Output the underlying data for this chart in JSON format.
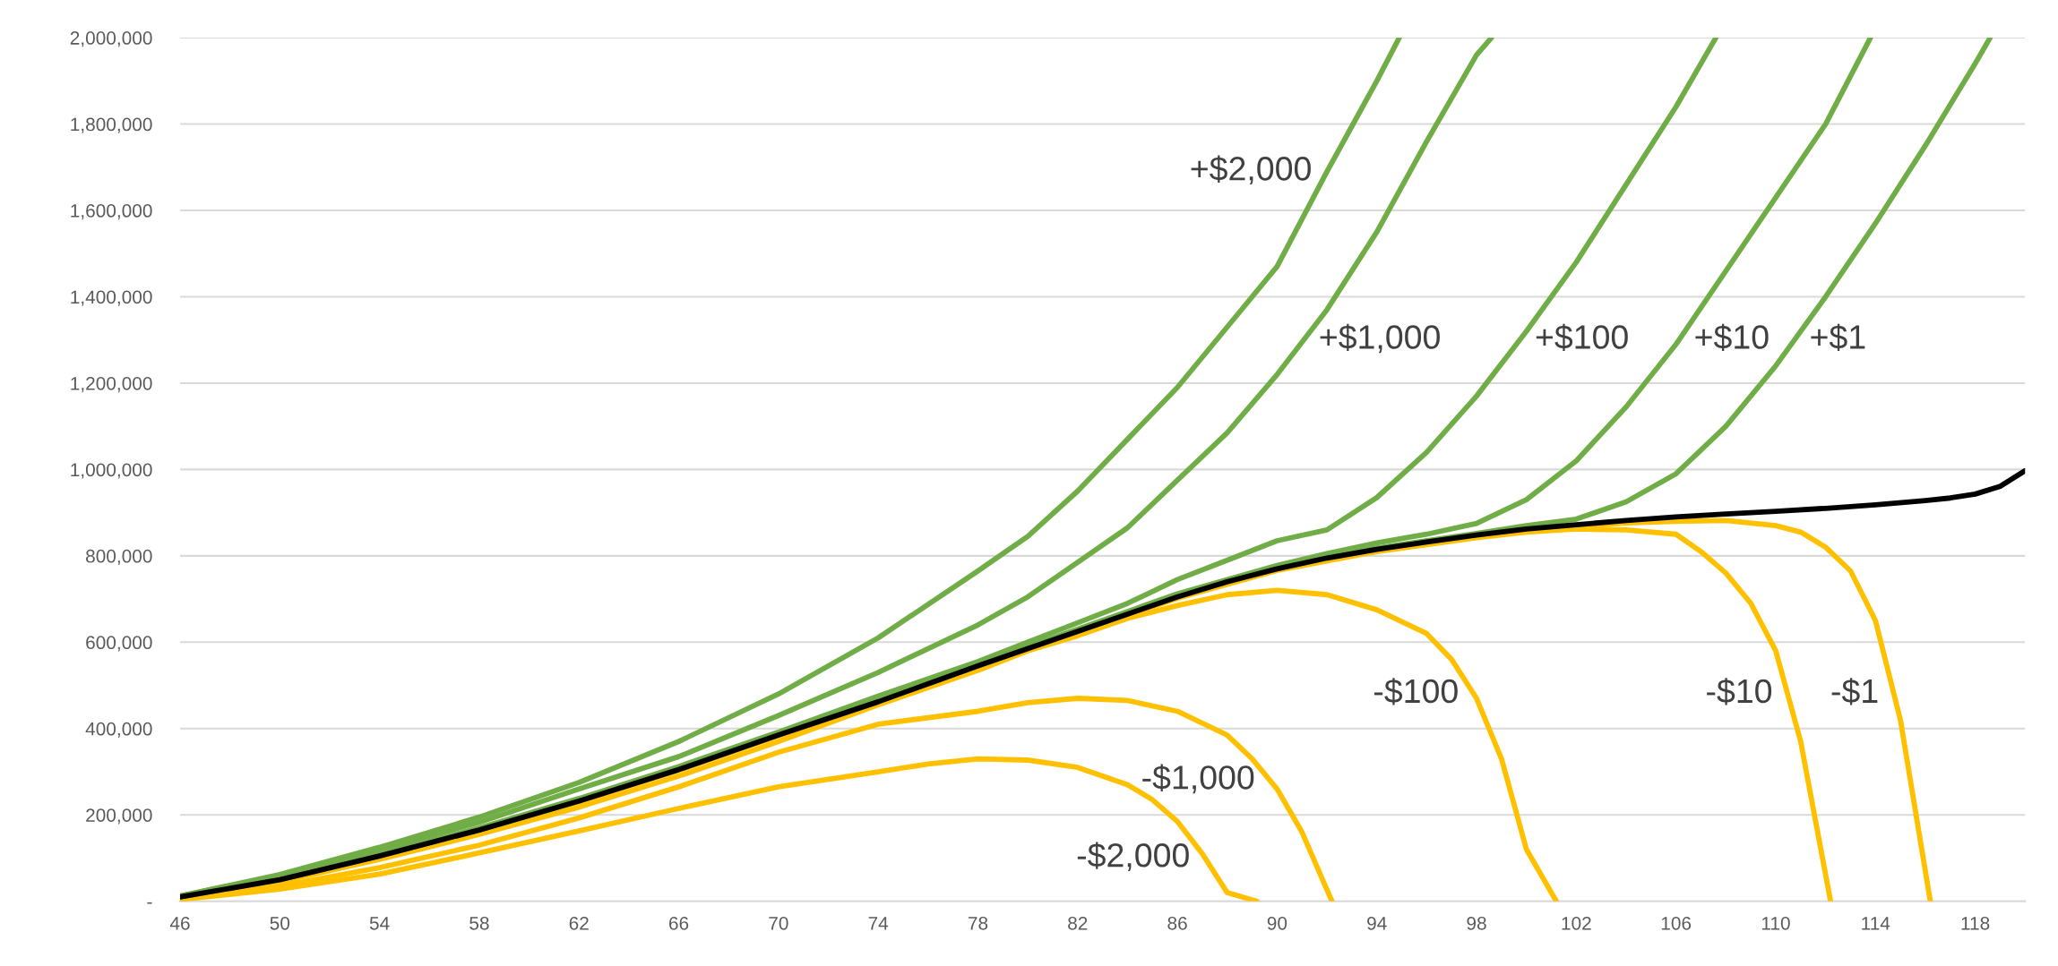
{
  "chart_data": {
    "type": "line",
    "xlim": [
      46,
      120
    ],
    "xticks": [
      46,
      50,
      54,
      58,
      62,
      66,
      70,
      74,
      78,
      82,
      86,
      90,
      94,
      98,
      102,
      106,
      110,
      114,
      118
    ],
    "ylim": [
      0,
      2000000
    ],
    "yticks": [
      {
        "value": 0,
        "label": "-"
      },
      {
        "value": 200000,
        "label": "200,000"
      },
      {
        "value": 400000,
        "label": "400,000"
      },
      {
        "value": 600000,
        "label": "600,000"
      },
      {
        "value": 800000,
        "label": "800,000"
      },
      {
        "value": 1000000,
        "label": "1,000,000"
      },
      {
        "value": 1200000,
        "label": "1,200,000"
      },
      {
        "value": 1400000,
        "label": "1,400,000"
      },
      {
        "value": 1600000,
        "label": "1,600,000"
      },
      {
        "value": 1800000,
        "label": "1,800,000"
      },
      {
        "value": 2000000,
        "label": "2,000,000"
      }
    ],
    "grid": "y",
    "marker": "none",
    "line_style": "solid",
    "series": [
      {
        "name": "-$2,000",
        "color": "#ffc000",
        "x": [
          46,
          50,
          54,
          58,
          62,
          66,
          70,
          74,
          76,
          78,
          80,
          82,
          84,
          85,
          86,
          87,
          88,
          89.2
        ],
        "values": [
          4000,
          28000,
          63000,
          112000,
          163000,
          215000,
          265000,
          300000,
          318000,
          330000,
          327000,
          310000,
          270000,
          235000,
          185000,
          110000,
          20000,
          0
        ]
      },
      {
        "name": "-$1,000",
        "color": "#ffc000",
        "x": [
          46,
          50,
          54,
          58,
          62,
          66,
          70,
          74,
          78,
          80,
          82,
          84,
          86,
          88,
          89,
          90,
          91,
          92.2
        ],
        "values": [
          5000,
          35000,
          78000,
          130000,
          193000,
          265000,
          345000,
          410000,
          440000,
          460000,
          470000,
          465000,
          440000,
          385000,
          330000,
          260000,
          160000,
          0
        ]
      },
      {
        "name": "-$100",
        "color": "#ffc000",
        "x": [
          46,
          50,
          54,
          58,
          62,
          66,
          70,
          74,
          78,
          80,
          82,
          84,
          86,
          88,
          90,
          92,
          94,
          96,
          97,
          98,
          99,
          100,
          101.2
        ],
        "values": [
          9000,
          45000,
          97000,
          155000,
          218000,
          290000,
          370000,
          455000,
          535000,
          580000,
          615000,
          655000,
          685000,
          710000,
          720000,
          710000,
          675000,
          620000,
          560000,
          470000,
          330000,
          120000,
          0
        ]
      },
      {
        "name": "-$10",
        "color": "#ffc000",
        "x": [
          46,
          50,
          54,
          58,
          62,
          66,
          70,
          74,
          78,
          82,
          86,
          90,
          94,
          98,
          100,
          102,
          104,
          106,
          107,
          108,
          109,
          110,
          111,
          112.2
        ],
        "values": [
          10000,
          49000,
          103000,
          163000,
          230000,
          303000,
          383000,
          460000,
          543000,
          623000,
          702000,
          766000,
          810000,
          842000,
          855000,
          862000,
          860000,
          850000,
          810000,
          760000,
          690000,
          580000,
          370000,
          0
        ]
      },
      {
        "name": "-$1",
        "color": "#ffc000",
        "x": [
          46,
          50,
          54,
          58,
          62,
          66,
          70,
          74,
          78,
          82,
          86,
          90,
          94,
          98,
          102,
          104,
          106,
          108,
          110,
          111,
          112,
          113,
          114,
          115,
          116.2
        ],
        "values": [
          10000,
          50000,
          104000,
          164000,
          231000,
          304000,
          384000,
          461000,
          544000,
          624000,
          704000,
          769000,
          813000,
          846000,
          868000,
          876000,
          880000,
          882000,
          870000,
          855000,
          820000,
          765000,
          650000,
          420000,
          0
        ]
      },
      {
        "name": "+$1",
        "color": "#70ad47",
        "x": [
          46,
          50,
          54,
          58,
          62,
          66,
          70,
          74,
          78,
          82,
          86,
          90,
          94,
          98,
          100,
          102,
          104,
          106,
          108,
          110,
          112,
          114,
          116,
          118,
          118.6
        ],
        "values": [
          10000,
          51000,
          106000,
          166000,
          233000,
          306000,
          386000,
          464000,
          547000,
          627000,
          707000,
          772000,
          818000,
          852000,
          870000,
          885000,
          925000,
          990000,
          1100000,
          1240000,
          1400000,
          1570000,
          1750000,
          1940000,
          2000000
        ]
      },
      {
        "name": "+$10",
        "color": "#70ad47",
        "x": [
          46,
          50,
          54,
          58,
          62,
          66,
          70,
          74,
          78,
          82,
          86,
          90,
          92,
          94,
          96,
          98,
          100,
          102,
          104,
          106,
          108,
          110,
          112,
          113.8
        ],
        "values": [
          11000,
          51000,
          106000,
          167000,
          234000,
          307000,
          387000,
          466000,
          549000,
          630000,
          712000,
          778000,
          805000,
          830000,
          850000,
          875000,
          930000,
          1020000,
          1145000,
          1290000,
          1460000,
          1630000,
          1800000,
          2000000
        ]
      },
      {
        "name": "+$100",
        "color": "#70ad47",
        "x": [
          46,
          50,
          54,
          58,
          62,
          66,
          70,
          74,
          78,
          80,
          82,
          84,
          86,
          88,
          90,
          92,
          94,
          96,
          98,
          100,
          102,
          104,
          106,
          107.6
        ],
        "values": [
          11000,
          52000,
          108000,
          170000,
          238000,
          312000,
          392000,
          475000,
          555000,
          600000,
          645000,
          690000,
          745000,
          790000,
          835000,
          860000,
          935000,
          1040000,
          1170000,
          1320000,
          1480000,
          1660000,
          1840000,
          2000000
        ]
      },
      {
        "name": "+$1,000",
        "color": "#70ad47",
        "x": [
          46,
          50,
          54,
          58,
          62,
          66,
          70,
          74,
          78,
          80,
          82,
          84,
          86,
          88,
          90,
          92,
          94,
          96,
          98,
          98.6
        ],
        "values": [
          12000,
          60000,
          118000,
          183000,
          260000,
          335000,
          430000,
          530000,
          640000,
          705000,
          785000,
          865000,
          975000,
          1085000,
          1220000,
          1370000,
          1550000,
          1760000,
          1960000,
          2000000
        ]
      },
      {
        "name": "+$2,000",
        "color": "#70ad47",
        "x": [
          46,
          50,
          54,
          58,
          62,
          66,
          70,
          74,
          78,
          80,
          82,
          84,
          86,
          88,
          90,
          92,
          94,
          94.9
        ],
        "values": [
          12000,
          62000,
          125000,
          195000,
          275000,
          370000,
          480000,
          610000,
          765000,
          845000,
          950000,
          1070000,
          1190000,
          1330000,
          1470000,
          1690000,
          1900000,
          2000000
        ]
      },
      {
        "color": "#000000",
        "x": [
          46,
          50,
          54,
          58,
          62,
          66,
          70,
          74,
          78,
          80,
          82,
          84,
          86,
          88,
          90,
          92,
          94,
          96,
          98,
          100,
          102,
          104,
          106,
          108,
          110,
          112,
          114,
          116,
          117,
          118,
          119,
          120
        ],
        "values": [
          10000,
          50000,
          105000,
          165000,
          232000,
          305000,
          385000,
          462000,
          545000,
          585000,
          625000,
          665000,
          705000,
          740000,
          770000,
          795000,
          815000,
          832000,
          848000,
          862000,
          872000,
          882000,
          890000,
          897000,
          903000,
          910000,
          918000,
          928000,
          934000,
          943000,
          961000,
          997000
        ]
      }
    ]
  }
}
